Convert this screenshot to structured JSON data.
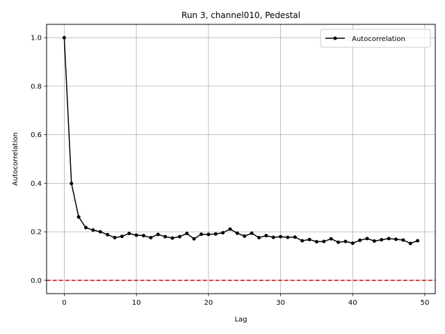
{
  "chart_data": {
    "type": "line",
    "title": "Run 3, channel010, Pedestal",
    "xlabel": "Lag",
    "ylabel": "Autocorrelation",
    "xlim": [
      -2.45,
      51.45
    ],
    "ylim": [
      -0.055,
      1.055
    ],
    "xticks": [
      0,
      10,
      20,
      30,
      40,
      50
    ],
    "xtick_labels": [
      "0",
      "10",
      "20",
      "30",
      "40",
      "50"
    ],
    "yticks": [
      0.0,
      0.2,
      0.4,
      0.6,
      0.8,
      1.0
    ],
    "ytick_labels": [
      "0.0",
      "0.2",
      "0.4",
      "0.6",
      "0.8",
      "1.0"
    ],
    "grid": true,
    "legend_position": "top-right",
    "series": [
      {
        "name": "Autocorrelation",
        "color": "#000000",
        "marker": "circle",
        "x": [
          0,
          1,
          2,
          3,
          4,
          5,
          6,
          7,
          8,
          9,
          10,
          11,
          12,
          13,
          14,
          15,
          16,
          17,
          18,
          19,
          20,
          21,
          22,
          23,
          24,
          25,
          26,
          27,
          28,
          29,
          30,
          31,
          32,
          33,
          34,
          35,
          36,
          37,
          38,
          39,
          40,
          41,
          42,
          43,
          44,
          45,
          46,
          47,
          48,
          49
        ],
        "y": [
          1.0,
          0.399,
          0.261,
          0.217,
          0.207,
          0.2,
          0.188,
          0.176,
          0.181,
          0.193,
          0.186,
          0.184,
          0.176,
          0.189,
          0.18,
          0.174,
          0.18,
          0.193,
          0.171,
          0.19,
          0.189,
          0.191,
          0.196,
          0.211,
          0.194,
          0.182,
          0.194,
          0.176,
          0.184,
          0.177,
          0.18,
          0.177,
          0.178,
          0.163,
          0.168,
          0.159,
          0.16,
          0.171,
          0.157,
          0.16,
          0.153,
          0.165,
          0.172,
          0.162,
          0.167,
          0.172,
          0.169,
          0.166,
          0.152,
          0.163
        ]
      }
    ],
    "reference_line": {
      "y": 0.0,
      "color": "#dd0000",
      "style": "dashed"
    }
  }
}
